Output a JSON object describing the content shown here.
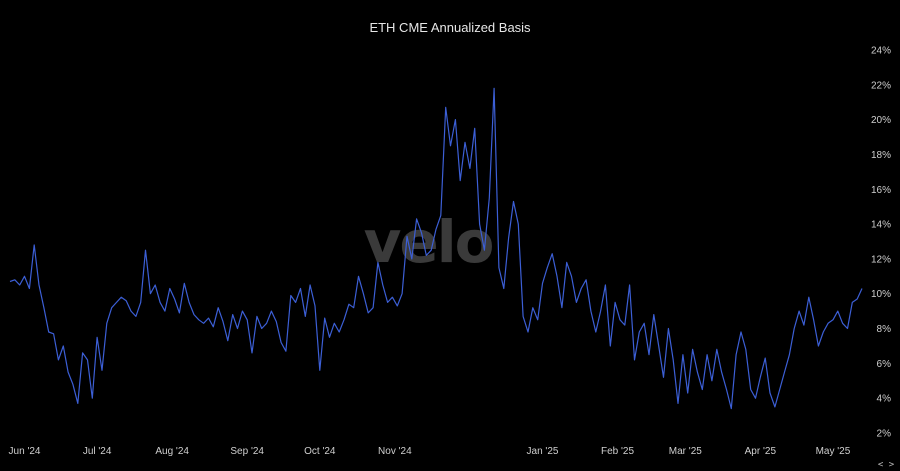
{
  "chart_data": {
    "type": "line",
    "title": "ETH CME Annualized Basis",
    "watermark": "velo",
    "ylim": [
      2,
      24
    ],
    "y_scale_position": "right",
    "grid": false,
    "y_ticks": [
      "2%",
      "4%",
      "6%",
      "8%",
      "10%",
      "12%",
      "14%",
      "16%",
      "18%",
      "20%",
      "22%",
      "24%"
    ],
    "x_ticks": [
      {
        "label": "Jun '24",
        "date": "2024-06-01"
      },
      {
        "label": "Jul '24",
        "date": "2024-07-01"
      },
      {
        "label": "Aug '24",
        "date": "2024-08-01"
      },
      {
        "label": "Sep '24",
        "date": "2024-09-01"
      },
      {
        "label": "Oct '24",
        "date": "2024-10-01"
      },
      {
        "label": "Nov '24",
        "date": "2024-11-01"
      },
      {
        "label": "Jan '25",
        "date": "2025-01-01"
      },
      {
        "label": "Feb '25",
        "date": "2025-02-01"
      },
      {
        "label": "Mar '25",
        "date": "2025-03-01"
      },
      {
        "label": "Apr '25",
        "date": "2025-04-01"
      },
      {
        "label": "May '25",
        "date": "2025-05-01"
      }
    ],
    "nav_label": "< >",
    "colors": {
      "background": "#000000",
      "line": "#3c5fd6",
      "text": "#cfcfcf",
      "watermark": "#3a3a3a"
    },
    "series": [
      {
        "values": [
          [
            "2024-05-26",
            10.7
          ],
          [
            "2024-05-28",
            10.8
          ],
          [
            "2024-05-30",
            10.5
          ],
          [
            "2024-06-01",
            11.0
          ],
          [
            "2024-06-03",
            10.3
          ],
          [
            "2024-06-05",
            12.8
          ],
          [
            "2024-06-07",
            10.5
          ],
          [
            "2024-06-09",
            9.2
          ],
          [
            "2024-06-11",
            7.8
          ],
          [
            "2024-06-13",
            7.7
          ],
          [
            "2024-06-15",
            6.2
          ],
          [
            "2024-06-17",
            7.0
          ],
          [
            "2024-06-19",
            5.5
          ],
          [
            "2024-06-21",
            4.8
          ],
          [
            "2024-06-23",
            3.7
          ],
          [
            "2024-06-25",
            6.6
          ],
          [
            "2024-06-27",
            6.2
          ],
          [
            "2024-06-29",
            4.0
          ],
          [
            "2024-07-01",
            7.5
          ],
          [
            "2024-07-03",
            5.6
          ],
          [
            "2024-07-05",
            8.3
          ],
          [
            "2024-07-07",
            9.2
          ],
          [
            "2024-07-09",
            9.5
          ],
          [
            "2024-07-11",
            9.8
          ],
          [
            "2024-07-13",
            9.6
          ],
          [
            "2024-07-15",
            9.0
          ],
          [
            "2024-07-17",
            8.7
          ],
          [
            "2024-07-19",
            9.5
          ],
          [
            "2024-07-21",
            12.5
          ],
          [
            "2024-07-23",
            10.0
          ],
          [
            "2024-07-25",
            10.5
          ],
          [
            "2024-07-27",
            9.5
          ],
          [
            "2024-07-29",
            9.0
          ],
          [
            "2024-07-31",
            10.3
          ],
          [
            "2024-08-02",
            9.7
          ],
          [
            "2024-08-04",
            8.9
          ],
          [
            "2024-08-06",
            10.6
          ],
          [
            "2024-08-08",
            9.5
          ],
          [
            "2024-08-10",
            8.8
          ],
          [
            "2024-08-12",
            8.5
          ],
          [
            "2024-08-14",
            8.3
          ],
          [
            "2024-08-16",
            8.6
          ],
          [
            "2024-08-18",
            8.1
          ],
          [
            "2024-08-20",
            9.2
          ],
          [
            "2024-08-22",
            8.4
          ],
          [
            "2024-08-24",
            7.3
          ],
          [
            "2024-08-26",
            8.8
          ],
          [
            "2024-08-28",
            8.0
          ],
          [
            "2024-08-30",
            9.0
          ],
          [
            "2024-09-01",
            8.5
          ],
          [
            "2024-09-03",
            6.6
          ],
          [
            "2024-09-05",
            8.7
          ],
          [
            "2024-09-07",
            8.0
          ],
          [
            "2024-09-09",
            8.3
          ],
          [
            "2024-09-11",
            9.0
          ],
          [
            "2024-09-13",
            8.4
          ],
          [
            "2024-09-15",
            7.2
          ],
          [
            "2024-09-17",
            6.7
          ],
          [
            "2024-09-19",
            9.9
          ],
          [
            "2024-09-21",
            9.5
          ],
          [
            "2024-09-23",
            10.3
          ],
          [
            "2024-09-25",
            8.7
          ],
          [
            "2024-09-27",
            10.5
          ],
          [
            "2024-09-29",
            9.3
          ],
          [
            "2024-10-01",
            5.6
          ],
          [
            "2024-10-03",
            8.6
          ],
          [
            "2024-10-05",
            7.5
          ],
          [
            "2024-10-07",
            8.3
          ],
          [
            "2024-10-09",
            7.8
          ],
          [
            "2024-10-11",
            8.5
          ],
          [
            "2024-10-13",
            9.4
          ],
          [
            "2024-10-15",
            9.2
          ],
          [
            "2024-10-17",
            11.0
          ],
          [
            "2024-10-19",
            10.0
          ],
          [
            "2024-10-21",
            8.9
          ],
          [
            "2024-10-23",
            9.2
          ],
          [
            "2024-10-25",
            11.8
          ],
          [
            "2024-10-27",
            10.5
          ],
          [
            "2024-10-29",
            9.5
          ],
          [
            "2024-10-31",
            9.8
          ],
          [
            "2024-11-02",
            9.3
          ],
          [
            "2024-11-04",
            10.0
          ],
          [
            "2024-11-06",
            13.3
          ],
          [
            "2024-11-08",
            12.0
          ],
          [
            "2024-11-10",
            14.3
          ],
          [
            "2024-11-12",
            13.5
          ],
          [
            "2024-11-14",
            12.2
          ],
          [
            "2024-11-16",
            12.5
          ],
          [
            "2024-11-18",
            13.7
          ],
          [
            "2024-11-20",
            14.5
          ],
          [
            "2024-11-22",
            20.7
          ],
          [
            "2024-11-24",
            18.5
          ],
          [
            "2024-11-26",
            20.0
          ],
          [
            "2024-11-28",
            16.5
          ],
          [
            "2024-11-30",
            18.7
          ],
          [
            "2024-12-02",
            17.2
          ],
          [
            "2024-12-04",
            19.5
          ],
          [
            "2024-12-06",
            14.0
          ],
          [
            "2024-12-08",
            12.5
          ],
          [
            "2024-12-10",
            15.5
          ],
          [
            "2024-12-12",
            21.8
          ],
          [
            "2024-12-14",
            11.5
          ],
          [
            "2024-12-16",
            10.3
          ],
          [
            "2024-12-18",
            13.2
          ],
          [
            "2024-12-20",
            15.3
          ],
          [
            "2024-12-22",
            14.0
          ],
          [
            "2024-12-24",
            8.7
          ],
          [
            "2024-12-26",
            7.8
          ],
          [
            "2024-12-28",
            9.2
          ],
          [
            "2024-12-30",
            8.5
          ],
          [
            "2025-01-01",
            10.6
          ],
          [
            "2025-01-03",
            11.5
          ],
          [
            "2025-01-05",
            12.3
          ],
          [
            "2025-01-07",
            11.0
          ],
          [
            "2025-01-09",
            9.2
          ],
          [
            "2025-01-11",
            11.8
          ],
          [
            "2025-01-13",
            11.0
          ],
          [
            "2025-01-15",
            9.5
          ],
          [
            "2025-01-17",
            10.3
          ],
          [
            "2025-01-19",
            10.8
          ],
          [
            "2025-01-21",
            9.0
          ],
          [
            "2025-01-23",
            7.8
          ],
          [
            "2025-01-25",
            9.0
          ],
          [
            "2025-01-27",
            10.5
          ],
          [
            "2025-01-29",
            7.0
          ],
          [
            "2025-01-31",
            9.5
          ],
          [
            "2025-02-02",
            8.5
          ],
          [
            "2025-02-04",
            8.2
          ],
          [
            "2025-02-06",
            10.5
          ],
          [
            "2025-02-08",
            6.2
          ],
          [
            "2025-02-10",
            7.8
          ],
          [
            "2025-02-12",
            8.3
          ],
          [
            "2025-02-14",
            6.5
          ],
          [
            "2025-02-16",
            8.8
          ],
          [
            "2025-02-18",
            7.0
          ],
          [
            "2025-02-20",
            5.2
          ],
          [
            "2025-02-22",
            8.0
          ],
          [
            "2025-02-24",
            6.2
          ],
          [
            "2025-02-26",
            3.7
          ],
          [
            "2025-02-28",
            6.5
          ],
          [
            "2025-03-02",
            4.3
          ],
          [
            "2025-03-04",
            6.8
          ],
          [
            "2025-03-06",
            5.5
          ],
          [
            "2025-03-08",
            4.5
          ],
          [
            "2025-03-10",
            6.5
          ],
          [
            "2025-03-12",
            5.0
          ],
          [
            "2025-03-14",
            6.8
          ],
          [
            "2025-03-16",
            5.5
          ],
          [
            "2025-03-18",
            4.5
          ],
          [
            "2025-03-20",
            3.4
          ],
          [
            "2025-03-22",
            6.5
          ],
          [
            "2025-03-24",
            7.8
          ],
          [
            "2025-03-26",
            6.8
          ],
          [
            "2025-03-28",
            4.5
          ],
          [
            "2025-03-30",
            4.0
          ],
          [
            "2025-04-01",
            5.2
          ],
          [
            "2025-04-03",
            6.3
          ],
          [
            "2025-04-05",
            4.3
          ],
          [
            "2025-04-07",
            3.5
          ],
          [
            "2025-04-09",
            4.5
          ],
          [
            "2025-04-11",
            5.5
          ],
          [
            "2025-04-13",
            6.5
          ],
          [
            "2025-04-15",
            8.0
          ],
          [
            "2025-04-17",
            9.0
          ],
          [
            "2025-04-19",
            8.2
          ],
          [
            "2025-04-21",
            9.8
          ],
          [
            "2025-04-23",
            8.5
          ],
          [
            "2025-04-25",
            7.0
          ],
          [
            "2025-04-27",
            7.8
          ],
          [
            "2025-04-29",
            8.3
          ],
          [
            "2025-05-01",
            8.5
          ],
          [
            "2025-05-03",
            9.0
          ],
          [
            "2025-05-05",
            8.3
          ],
          [
            "2025-05-07",
            8.0
          ],
          [
            "2025-05-09",
            9.5
          ],
          [
            "2025-05-11",
            9.7
          ],
          [
            "2025-05-13",
            10.3
          ]
        ]
      }
    ]
  }
}
